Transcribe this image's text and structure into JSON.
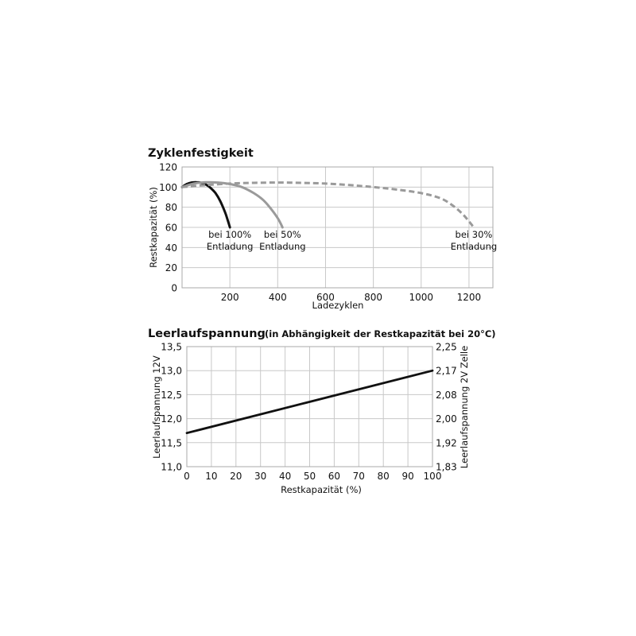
{
  "chart_data": [
    {
      "type": "line",
      "title": "Zyklenfestigkeit",
      "xlabel": "Ladezyklen",
      "ylabel": "Restkapazität (%)",
      "xlim": [
        0,
        1300
      ],
      "ylim": [
        0,
        120
      ],
      "xticks": [
        200,
        400,
        600,
        800,
        1000,
        1200
      ],
      "xtick_labels": [
        "200",
        "400",
        "600",
        "800",
        "1000",
        "1200"
      ],
      "yticks": [
        0,
        20,
        40,
        60,
        80,
        100,
        120
      ],
      "ytick_labels": [
        "0",
        "20",
        "40",
        "60",
        "80",
        "100",
        "120"
      ],
      "grid": true,
      "series": [
        {
          "name": "",
          "color": "#111111",
          "dash": "solid",
          "x": [
            0,
            20,
            40,
            60,
            80,
            100,
            120,
            140,
            160,
            180,
            190,
            200
          ],
          "y": [
            100,
            103,
            104.5,
            104.8,
            104.2,
            102.5,
            99,
            94,
            86,
            75,
            68,
            60
          ]
        },
        {
          "name": "",
          "color": "#9a9a9a",
          "dash": "solid",
          "x": [
            0,
            50,
            100,
            150,
            200,
            250,
            300,
            340,
            370,
            395,
            410,
            420
          ],
          "y": [
            100,
            103.5,
            104.8,
            104.5,
            103,
            100,
            94,
            87,
            79,
            71,
            65,
            60
          ]
        },
        {
          "name": "",
          "color": "#9a9a9a",
          "dash": "dashed",
          "x": [
            0,
            100,
            200,
            300,
            400,
            500,
            600,
            700,
            800,
            900,
            1000,
            1080,
            1130,
            1170,
            1200,
            1220
          ],
          "y": [
            100,
            102,
            103.5,
            104.2,
            104.5,
            104.2,
            103.5,
            102,
            100,
            97.5,
            94,
            89,
            82,
            74,
            66,
            60
          ]
        }
      ],
      "annotations": [
        {
          "lines": [
            "bei 100%",
            "Entladung"
          ],
          "x": 200,
          "y": 52
        },
        {
          "lines": [
            "bei 50%",
            "Entladung"
          ],
          "x": 420,
          "y": 52
        },
        {
          "lines": [
            "bei 30%",
            "Entladung"
          ],
          "x": 1220,
          "y": 52
        }
      ]
    },
    {
      "type": "line",
      "title": "Leerlaufspannung",
      "subtitle": "(in Abhängigkeit der Restkapazität bei 20°C)",
      "xlabel": "Restkapazität (%)",
      "ylabel": "Leerlaufspannung 12V",
      "y2label": "Leerlaufspannung 2V Zelle",
      "xlim": [
        0,
        100
      ],
      "ylim": [
        11.0,
        13.5
      ],
      "xticks": [
        0,
        10,
        20,
        30,
        40,
        50,
        60,
        70,
        80,
        90,
        100
      ],
      "xtick_labels": [
        "0",
        "10",
        "20",
        "30",
        "40",
        "50",
        "60",
        "70",
        "80",
        "90",
        "100"
      ],
      "yticks": [
        11.0,
        11.5,
        12.0,
        12.5,
        13.0,
        13.5
      ],
      "ytick_labels": [
        "11,0",
        "11,5",
        "12,0",
        "12,5",
        "13,0",
        "13,5"
      ],
      "y2tick_labels": [
        "1,83",
        "1,92",
        "2,00",
        "2,08",
        "2,17",
        "2,25"
      ],
      "grid": true,
      "series": [
        {
          "name": "",
          "color": "#111111",
          "dash": "solid",
          "x": [
            0,
            100
          ],
          "y": [
            11.7,
            13.0
          ]
        }
      ]
    }
  ]
}
